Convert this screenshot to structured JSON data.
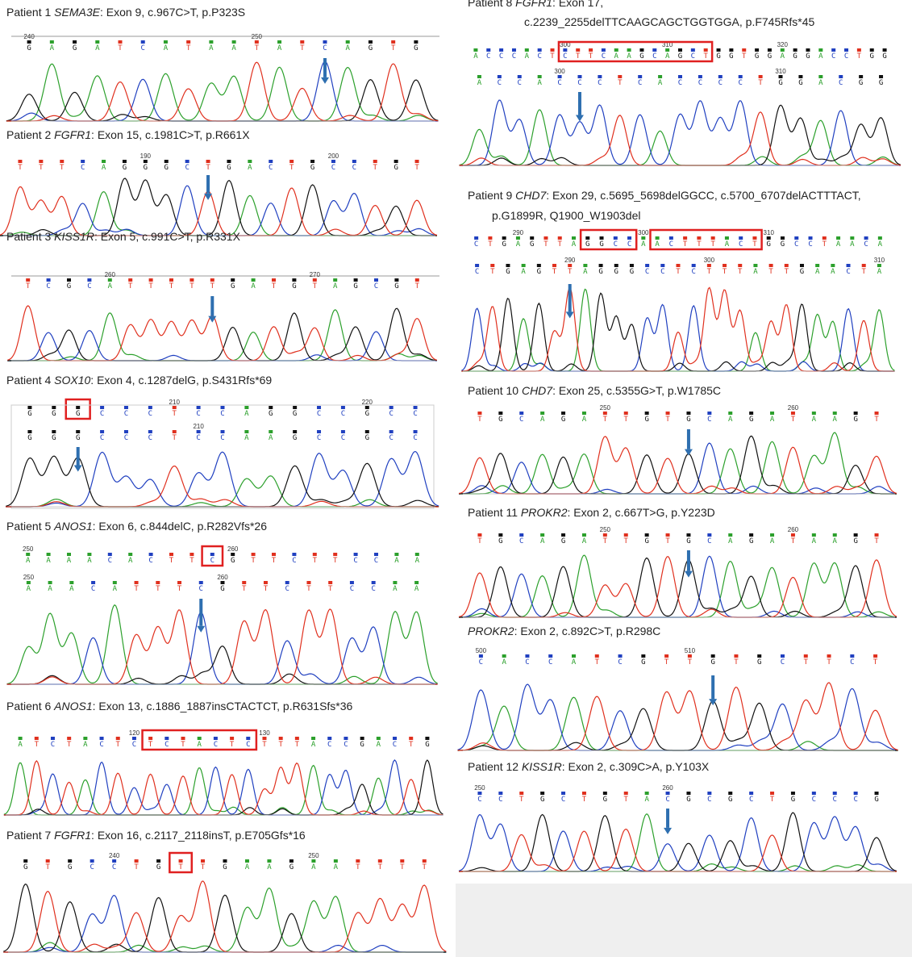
{
  "panels": [
    {
      "caption": {
        "label": "Patient 1",
        "gene": "SEMA3E",
        "detail": ": Exon 9, c.967C>T, p.P323S"
      },
      "rows": [
        {
          "numbers": [
            "240",
            "250"
          ],
          "bases": "GAGATCATAATATCAGTG"
        }
      ]
    },
    {
      "caption": {
        "label": "Patient 2",
        "gene": "FGFR1",
        "detail": ": Exon 15, c.1981C>T, p.R661X"
      },
      "rows": [
        {
          "numbers": [
            "190",
            "200"
          ],
          "bases": "TTTCAGGGCTGACTGCCTGT"
        }
      ]
    },
    {
      "caption": {
        "label": "Patient 3",
        "gene": "KISS1R",
        "detail": ": Exon 5, c.991C>T, p.R331X"
      },
      "rows": [
        {
          "numbers": [
            "260",
            "270"
          ],
          "bases": "TCGCATTTTTGATGTAGCGT"
        }
      ]
    },
    {
      "caption": {
        "label": "Patient 4",
        "gene": "SOX10",
        "detail": ": Exon 4, c.1287delG, p.S431Rfs*69"
      },
      "rows": [
        {
          "numbers": [
            "210",
            "220"
          ],
          "bases": "GGGCCCTCCAGGCCGCC"
        },
        {
          "numbers": [
            "210"
          ],
          "bases": "GGGCCCTCCAAGCCGCC"
        }
      ]
    },
    {
      "caption": {
        "label": "Patient 5",
        "gene": "ANOS1",
        "detail": ": Exon 6, c.844delC, p.R282Vfs*26"
      },
      "rows": [
        {
          "numbers": [
            "250",
            "260"
          ],
          "bases": "AAAACACTTCGTTCTTCCAA"
        },
        {
          "numbers": [
            "250",
            "260"
          ],
          "bases": "AAACATTTCGTTCTTCCAA"
        }
      ]
    },
    {
      "caption": {
        "label": "Patient 6",
        "gene": "ANOS1",
        "detail": ": Exon 13, c.1886_1887insCTACTCT, p.R631Sfs*36"
      },
      "rows": [
        {
          "numbers": [
            "120",
            "130"
          ],
          "bases": "ATCTACTCTCTACTCTTTACCGACTG"
        }
      ]
    },
    {
      "caption": {
        "label": "Patient 7",
        "gene": "FGFR1",
        "detail": ": Exon 16, c.2117_2118insT, p.E705Gfs*16"
      },
      "rows": [
        {
          "numbers": [
            "240",
            "250"
          ],
          "bases": "GTGCCTGTTGAAGAATTTT"
        }
      ]
    },
    {
      "caption": {
        "label": "Patient 8",
        "gene": "FGFR1",
        "detail": ": Exon 17,",
        "detail2": "c.2239_2255delTTCAAGCAGCTGGTGGA, p.F745Rfs*45"
      },
      "rows": [
        {
          "numbers": [
            "300",
            "310",
            "320"
          ],
          "bases": "ACCCACTCTTCAAGCAGCTGGTGGAGGACCTGG"
        },
        {
          "numbers": [
            "300",
            "310"
          ],
          "bases": "ACCACCCTCACCCCTGGACGG"
        }
      ]
    },
    {
      "caption": {
        "label": "Patient 9",
        "gene": "CHD7",
        "detail": ": Exon 29, c.5695_5698delGGCC, c.5700_6707delACTTTACT,",
        "detail2": "p.G1899R, Q1900_W1903del"
      },
      "rows": [
        {
          "numbers": [
            "290",
            "300",
            "310"
          ],
          "bases": "CTGAGTTAGGCCAACTTTACTGGCCTAACA"
        },
        {
          "numbers": [
            "290",
            "300",
            "310"
          ],
          "bases": "CTGAGTTAGGGCCTCTTTATTGAACTA"
        }
      ]
    },
    {
      "caption": {
        "label": "Patient 10",
        "gene": "CHD7",
        "detail": ": Exon 25, c.5355G>T, p.W1785C"
      },
      "rows": [
        {
          "numbers": [
            "250",
            "260"
          ],
          "bases": "TGCAGATTGTGCAGATAAGT"
        }
      ]
    },
    {
      "caption": {
        "label": "Patient 11",
        "gene": "PROKR2",
        "detail": ": Exon 2, c.667T>G, p.Y223D"
      },
      "rows": [
        {
          "numbers": [
            "250",
            "260"
          ],
          "bases": "TGCAGATTGTGCAGATAAGT"
        }
      ]
    },
    {
      "caption": {
        "gene": "PROKR2",
        "detail": ": Exon 2, c.892C>T, p.R298C"
      },
      "rows": [
        {
          "numbers": [
            "500",
            "510"
          ],
          "bases": "CACCATCGTTGTGCTTCT"
        }
      ]
    },
    {
      "caption": {
        "label": "Patient 12",
        "gene": "KISS1R",
        "detail": ": Exon 2, c.309C>A, p.Y103X"
      },
      "rows": [
        {
          "numbers": [
            "250",
            "260"
          ],
          "bases": "CCTGCTGTACGCGCTGCCCG"
        }
      ]
    }
  ]
}
